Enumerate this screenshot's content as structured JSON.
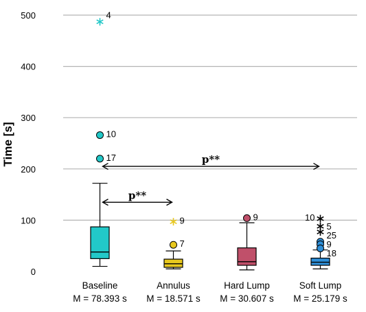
{
  "chart_data": {
    "type": "boxplot",
    "ylabel": "Time [s]",
    "xlabel": "",
    "ylim": [
      -10,
      530
    ],
    "yticks": [
      0,
      100,
      200,
      300,
      400,
      500
    ],
    "grid": "horizontal",
    "groups": [
      {
        "name": "Baseline",
        "mean_label": "M = 78.393 s",
        "color": "#22C8C8",
        "whisker_low": 10,
        "q1": 25,
        "median": 38,
        "q3": 87,
        "whisker_high": 172,
        "outliers": [
          {
            "value": 487,
            "label": "4",
            "marker": "star"
          },
          {
            "value": 266,
            "label": "10",
            "marker": "circle"
          },
          {
            "value": 220,
            "label": "17",
            "marker": "circle"
          }
        ]
      },
      {
        "name": "Annulus",
        "mean_label": "M = 18.571 s",
        "color": "#E8C81E",
        "whisker_low": 5,
        "q1": 8,
        "median": 15,
        "q3": 24,
        "whisker_high": 40,
        "outliers": [
          {
            "value": 97,
            "label": "9",
            "marker": "star"
          },
          {
            "value": 52,
            "label": "7",
            "marker": "circle"
          }
        ]
      },
      {
        "name": "Hard Lump",
        "mean_label": "M = 30.607 s",
        "color": "#C0506A",
        "whisker_low": 3,
        "q1": 12,
        "median": 19,
        "q3": 46,
        "whisker_high": 95,
        "outliers": [
          {
            "value": 104,
            "label": "9",
            "marker": "circle"
          }
        ]
      },
      {
        "name": "Soft Lump",
        "mean_label": "M = 25.179 s",
        "color": "#2E8FD8",
        "whisker_low": 5,
        "q1": 12,
        "median": 18,
        "q3": 26,
        "whisker_high": 42,
        "outliers": [
          {
            "value": 103,
            "label": "10",
            "marker": "star"
          },
          {
            "value": 88,
            "label": "5",
            "marker": "star"
          },
          {
            "value": 77,
            "label": "25",
            "marker": "star"
          },
          {
            "value": 58,
            "label": "9",
            "marker": "circle"
          },
          {
            "value": 53,
            "label": "",
            "marker": "circle"
          },
          {
            "value": 45,
            "label": "18",
            "marker": "circle"
          }
        ]
      }
    ],
    "annotations": [
      {
        "text": "p**",
        "from": "Baseline",
        "to": "Annulus",
        "y": 135
      },
      {
        "text": "p**",
        "from": "Baseline",
        "to": "Soft Lump",
        "y": 205
      }
    ]
  }
}
